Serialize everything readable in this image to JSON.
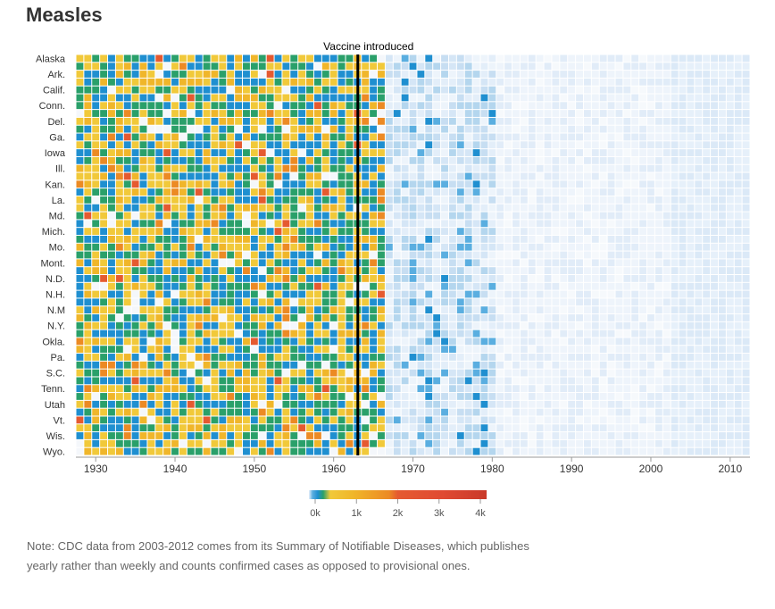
{
  "title": "Measles",
  "chart_data": {
    "type": "heatmap",
    "title": "Measles",
    "states": [
      "Alaska",
      "Ark.",
      "Calif.",
      "Conn.",
      "Del.",
      "Ga.",
      "Iowa",
      "Ill.",
      "Kan.",
      "La.",
      "Md.",
      "Mich.",
      "Mo.",
      "Mont.",
      "N.D.",
      "N.H.",
      "N.M",
      "N.Y.",
      "Okla.",
      "Pa.",
      "S.C.",
      "Tenn.",
      "Utah",
      "Vt.",
      "Wis.",
      "Wyo."
    ],
    "row_labels_shown": [
      "Alaska",
      "Ark.",
      "Calif.",
      "Conn.",
      "Del.",
      "Ga.",
      "Iowa",
      "Ill.",
      "Kan.",
      "La.",
      "Md.",
      "Mich.",
      "Mo.",
      "Mont.",
      "N.D.",
      "N.H.",
      "N.M",
      "N.Y.",
      "Okla.",
      "Pa.",
      "S.C.",
      "Tenn.",
      "Utah",
      "Vt.",
      "Wis.",
      "Wyo."
    ],
    "row_count": 51,
    "x_start": 1928,
    "x_end": 2012,
    "xlim": [
      1928,
      2012
    ],
    "xticks": [
      "1930",
      "1940",
      "1950",
      "1960",
      "1970",
      "1980",
      "1990",
      "2000",
      "2010"
    ],
    "annotation": {
      "label": "Vaccine introduced",
      "year": 1963
    },
    "color_scale": {
      "ticks": [
        "0k",
        "1k",
        "2k",
        "3k",
        "4k"
      ],
      "domain": [
        0,
        4000
      ],
      "colors": [
        "#e8f1fb",
        "#b4d6ee",
        "#5aaee0",
        "#1f8fd0",
        "#2aa06a",
        "#f1c93a",
        "#f0b62a",
        "#ec8a24",
        "#e55a30",
        "#c93a2a"
      ]
    },
    "data_description": "Weekly measles cases per 100,000 by state, 1928-2012; high pre-1963 values, dropping sharply after vaccine"
  },
  "note": "Note: CDC data from 2003-2012 comes from its Summary of Notifiable Diseases, which publishes yearly rather than weekly and counts confirmed cases as opposed to provisional ones."
}
